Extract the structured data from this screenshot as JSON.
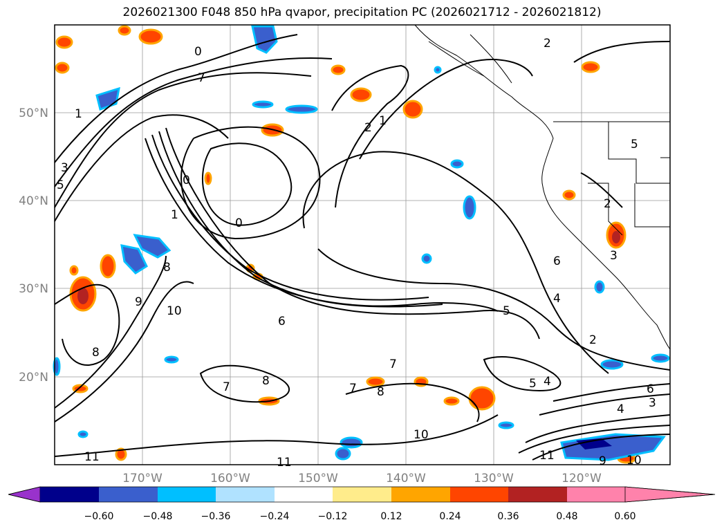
{
  "title": "2026021300 F048 850 hPa qvapor, precipitation PC (2026021712 - 2026021812)",
  "map": {
    "lat_labels": [
      "50°N",
      "40°N",
      "30°N",
      "20°N"
    ],
    "lon_labels": [
      "170°W",
      "160°W",
      "150°W",
      "140°W",
      "130°W",
      "120°W"
    ]
  },
  "contour_labels": [
    "0",
    "1",
    "2",
    "3",
    "4",
    "5",
    "6",
    "7",
    "8",
    "9",
    "10",
    "11"
  ],
  "colorbar": {
    "ticks": [
      "−0.60",
      "−0.48",
      "−0.36",
      "−0.24",
      "−0.12",
      "0.12",
      "0.24",
      "0.36",
      "0.48",
      "0.60"
    ],
    "colors": [
      "#9932cc",
      "#00008b",
      "#3a5fcd",
      "#00bfff",
      "#b0e2ff",
      "#ffffff",
      "#ffec8b",
      "#ffa500",
      "#ff4500",
      "#b22222",
      "#ff82ab"
    ]
  }
}
